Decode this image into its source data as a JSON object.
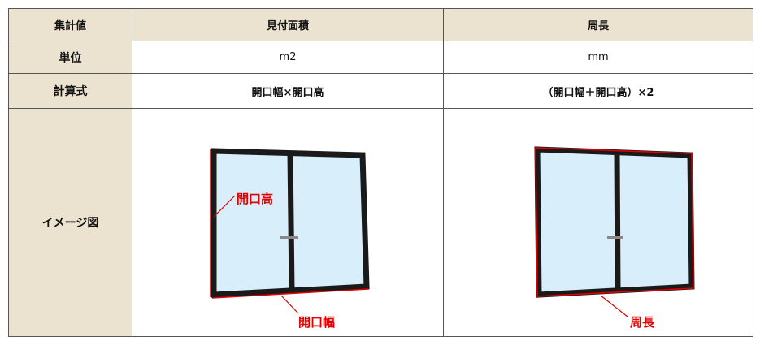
{
  "table": {
    "header": [
      "集計値",
      "見付面積",
      "周長"
    ],
    "rows": [
      [
        "単位",
        "m2",
        "mm"
      ],
      [
        "計算式",
        "開口幅×開口高",
        "（開口幅＋開口高）×2"
      ],
      [
        "イメージ図",
        {
          "labels": [
            "開口高",
            "開口幅"
          ]
        },
        {
          "labels": [
            "周長"
          ]
        }
      ]
    ]
  }
}
